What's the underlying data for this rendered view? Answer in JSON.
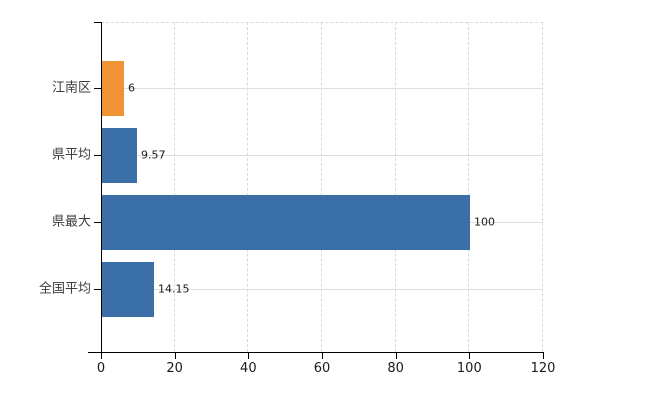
{
  "chart_data": {
    "type": "bar",
    "orientation": "horizontal",
    "title": "",
    "xlabel": "",
    "ylabel": "",
    "categories": [
      "江南区",
      "県平均",
      "県最大",
      "全国平均"
    ],
    "values": [
      6,
      9.57,
      100,
      14.15
    ],
    "value_labels": [
      "6",
      "9.57",
      "100",
      "14.15"
    ],
    "bar_colors": [
      "#ef9335",
      "#3a6fa8",
      "#3a6fa8",
      "#3a6fa8"
    ],
    "xlim": [
      0,
      120
    ],
    "xticks": [
      0,
      20,
      40,
      60,
      80,
      100,
      120
    ],
    "grid": true,
    "legend": false
  },
  "colors": {
    "background": "#ffffff",
    "axis": "#000000",
    "gridline": "#d9d9d9",
    "category_label": "#3c3c3c",
    "value_label": "#1a1a1a",
    "tick_label": "#1a1a1a",
    "bar_orange": "#ef9335",
    "bar_blue": "#3a6fa8"
  }
}
